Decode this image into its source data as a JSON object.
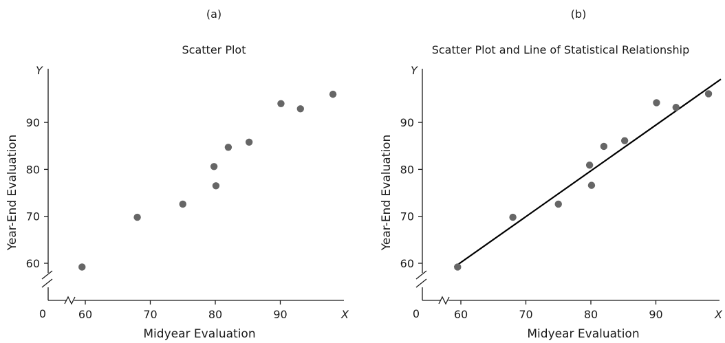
{
  "chart_data": [
    {
      "panel_label": "(a)",
      "type": "scatter",
      "title": "Scatter Plot",
      "xlabel": "Midyear Evaluation",
      "ylabel": "Year-End Evaluation",
      "x_axis_letter": "X",
      "y_axis_letter": "Y",
      "origin_label": "0",
      "xlim": [
        55,
        100
      ],
      "ylim": [
        50,
        100
      ],
      "x_ticks": [
        60,
        70,
        80,
        90
      ],
      "y_ticks": [
        60,
        70,
        80,
        90
      ],
      "axis_break": true,
      "grid": false,
      "point_color": "#666666",
      "points": [
        {
          "x": 59.5,
          "y": 59.2
        },
        {
          "x": 68,
          "y": 69.8
        },
        {
          "x": 75,
          "y": 72.6
        },
        {
          "x": 79.8,
          "y": 80.6
        },
        {
          "x": 80.1,
          "y": 76.5
        },
        {
          "x": 82,
          "y": 84.7
        },
        {
          "x": 85.2,
          "y": 85.8
        },
        {
          "x": 90.1,
          "y": 94.0
        },
        {
          "x": 93.1,
          "y": 92.9
        },
        {
          "x": 98.1,
          "y": 96.0
        }
      ]
    },
    {
      "panel_label": "(b)",
      "type": "scatter",
      "title": "Scatter Plot and Line of Statistical Relationship",
      "xlabel": "Midyear Evaluation",
      "ylabel": "Year-End Evaluation",
      "x_axis_letter": "X",
      "y_axis_letter": "Y",
      "origin_label": "0",
      "xlim": [
        55,
        100
      ],
      "ylim": [
        50,
        100
      ],
      "x_ticks": [
        60,
        70,
        80,
        90
      ],
      "y_ticks": [
        60,
        70,
        80,
        90
      ],
      "axis_break": true,
      "grid": false,
      "point_color": "#666666",
      "line_color": "#000000",
      "fit_line": {
        "x1": 59,
        "y1": 59.2,
        "x2": 100,
        "y2": 99.2
      },
      "points": [
        {
          "x": 59.5,
          "y": 59.2
        },
        {
          "x": 68,
          "y": 69.8
        },
        {
          "x": 75,
          "y": 72.6
        },
        {
          "x": 79.8,
          "y": 80.9
        },
        {
          "x": 80.1,
          "y": 76.6
        },
        {
          "x": 82,
          "y": 84.9
        },
        {
          "x": 85.2,
          "y": 86.1
        },
        {
          "x": 90.1,
          "y": 94.2
        },
        {
          "x": 93.1,
          "y": 93.2
        },
        {
          "x": 98.1,
          "y": 96.1
        }
      ]
    }
  ]
}
